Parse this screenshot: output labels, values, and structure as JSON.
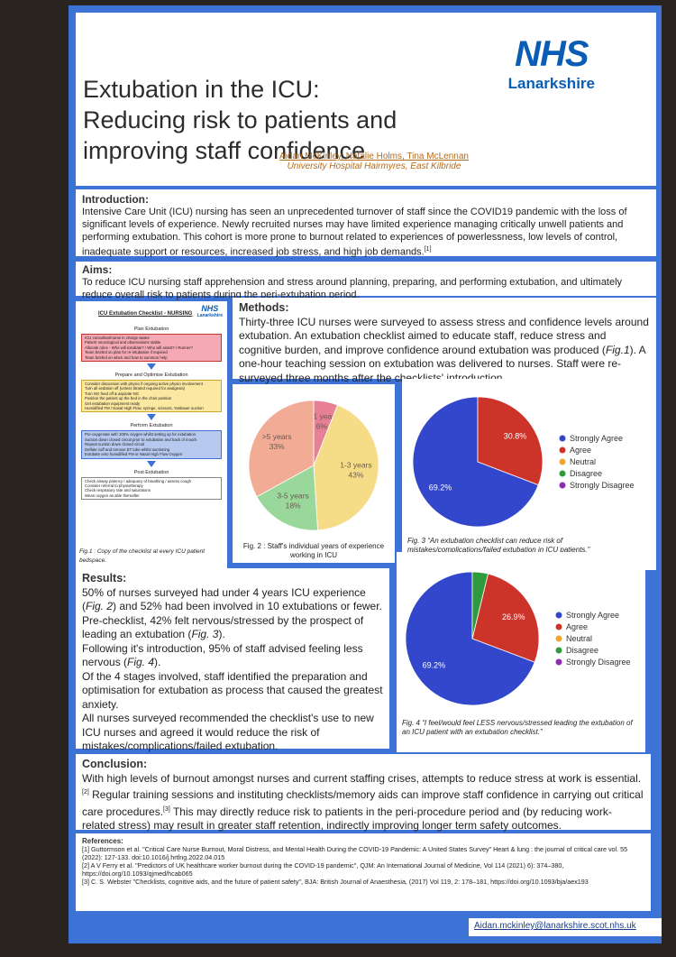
{
  "header": {
    "title": [
      "Extubation in the ICU:",
      "Reducing risk to patients and",
      "improving staff confidence"
    ],
    "logo": "NHS",
    "logo_sub": "Lanarkshire",
    "authors": "Aidan McKinley, Natalie Holms, Tina McLennan",
    "affiliation": "University Hospital Hairmyres, East Kilbride"
  },
  "introduction": {
    "heading": "Introduction:",
    "text": "Intensive Care Unit (ICU) nursing has seen an unprecedented turnover of staff since the COVID19 pandemic with the loss of significant levels of experience. Newly recruited nurses may have limited experience managing critically unwell patients and performing extubation. This cohort is more prone to burnout related to experiences of powerlessness, low levels of control, inadequate support or resources, increased job stress, and high job demands.",
    "ref": "[1]"
  },
  "aims": {
    "heading": "Aims:",
    "text": "To reduce ICU nursing staff apprehension and stress around planning, preparing, and performing extubation, and ultimately reduce overall risk to patients during the peri-extubation period."
  },
  "methods": {
    "heading": "Methods:",
    "text": [
      "Thirty-three ICU nurses were surveyed to assess stress and confidence levels around extubation. An extubation checklist aimed to educate staff, reduce stress and cognitive burden, and improve confidence around extubation was produced (",
      "Fig.1",
      "). A one-hour teaching session on extubation was delivered to nurses. Staff were re-surveyed three months after the checklists' introduction."
    ]
  },
  "checklist": {
    "title": "ICU Extubation Checklist - NURSING",
    "logo": "NHS",
    "logo_sub": "Lanarkshire",
    "caption": "Fig.1 : Copy of the checklist at every ICU patient bedspace.",
    "sections": [
      {
        "heading": "Plan Extubation",
        "items": [
          "ICU consultant/nurse in charge aware",
          "Patient neurological and observations stable",
          "Allocate roles - Who will extubate? / Who will assist? / Runner?",
          "Team briefed on plan for re-intubation if required",
          "Team briefed on when and how to summon help"
        ]
      },
      {
        "heading": "Prepare and Optimise Extubation",
        "items": [
          "Consider discussion with physio if ongoing active physio involvement",
          "Turn all sedation off (unless titrated required for analgesia)",
          "Turn NG feed off & aspirate NG",
          "Position the patient up the bed in the chair position",
          "Get extubation equipment ready",
          "Humidified FM / Nasal High Flow, syringe, scissors, Yankauer suction"
        ]
      },
      {
        "heading": "Perform Extubation",
        "items": [
          "Pre-oxygenate with 100% oxygen whilst setting up for extubation",
          "Suction down closed circuit prior to extubation and back of mouth",
          "Repeat suction down closed circuit",
          "Deflate cuff and remove ET tube whilst suctioning",
          "Extubate onto humidified FM or Nasal High Flow Oxygen"
        ]
      },
      {
        "heading": "Post Extubation",
        "items": [
          "Check airway patency / adequacy of breathing / assess cough",
          "Consider referral to physiotherapy",
          "Check respiratory rate and saturations",
          "Wean oxygen as able thereafter"
        ]
      }
    ]
  },
  "results": {
    "heading": "Results:",
    "paragraphs": [
      [
        "50% of nurses surveyed had under 4 years ICU experience (",
        "Fig. 2",
        ") and 52% had been involved in 10 extubations or fewer."
      ],
      [
        "Pre-checklist, 42% felt nervous/stressed by the prospect of leading an extubation (",
        "Fig. 3",
        ")."
      ],
      [
        "Following it's introduction, 95% of staff advised feeling less nervous (",
        "Fig. 4",
        ")."
      ],
      [
        "Of the 4 stages involved, staff identified the preparation and optimisation for extubation as process that caused the greatest anxiety."
      ],
      [
        "All nurses surveyed recommended the checklist's use to new ICU nurses and agreed it would reduce the risk of mistakes/complications/failed extubation."
      ]
    ]
  },
  "conclusion": {
    "heading": "Conclusion:",
    "parts": [
      "With high levels of burnout amongst nurses and current staffing crises, attempts to reduce stress at work is essential.",
      "[2]",
      " Regular training sessions and instituting checklists/memory aids can improve staff confidence in carrying out critical care procedures.",
      "[3]",
      " This may directly reduce risk to patients in the peri-procedure period and (by reducing work-related stress) may result in greater staff retention, indirectly improving longer term safety outcomes."
    ]
  },
  "references": {
    "heading": "References:",
    "items": [
      "[1] Guttormson et al. \"Critical Care Nurse Burnout, Moral Distress, and Mental Health During the COVID-19 Pandemic: A United States Survey\" Heart & lung : the journal of critical care vol. 55 (2022): 127-133. doi:10.1016/j.hrtlng.2022.04.015",
      "[2] A V Ferry et al. \"Predictors of UK healthcare worker burnout during the COVID-19 pandemic\", QJM: An International Journal of Medicine, Vol 114 (2021) 6): 374–380, https://doi.org/10.1093/qjmed/hcab065",
      "[3] C. S. Webster \"Checklists, cognitive aids, and the future of patient safety\", BJA: British Journal of Anaesthesia, (2017) Vol 119, 2: 178–181, https://doi.org/10.1093/bja/aex193"
    ]
  },
  "email": "Aidan.mckinley@lanarkshire.scot.nhs.uk",
  "chart_data": [
    {
      "type": "pie",
      "caption": "Fig. 2 : Staff's individual years of experience working in ICU",
      "categories": [
        "<1 year",
        "1-3 years",
        "3-5 years",
        ">5 years"
      ],
      "values": [
        6,
        43,
        18,
        33
      ],
      "value_labels": [
        "6%",
        "43%",
        "18%",
        "33%"
      ],
      "colors": [
        "#e77f95",
        "#f6dc86",
        "#9ad79a",
        "#f2ab95"
      ],
      "direction": "clockwise"
    },
    {
      "type": "pie",
      "caption": "Fig. 3 “An extubation checklist can reduce risk of mistakes/complications/failed extubation in ICU patients.”",
      "categories": [
        "Strongly Agree",
        "Agree",
        "Neutral",
        "Disagree",
        "Strongly Disagree"
      ],
      "values": [
        69.2,
        30.8,
        0,
        0,
        0
      ],
      "value_labels": [
        "69.2%",
        "30.8%",
        null,
        null,
        null
      ],
      "colors": [
        "#3347cc",
        "#cc3329",
        "#f1a52f",
        "#2f9b3c",
        "#8e2db3"
      ],
      "direction": "counterclockwise",
      "legend": "right"
    },
    {
      "type": "pie",
      "caption": "Fig. 4 “I feel/would feel LESS nervous/stressed leading the extubation of an ICU patient with an extubation checklist.”",
      "categories": [
        "Strongly Agree",
        "Agree",
        "Neutral",
        "Disagree",
        "Strongly Disagree"
      ],
      "values": [
        69.2,
        26.9,
        0,
        3.8,
        0
      ],
      "value_labels": [
        "69.2%",
        "26.9%",
        null,
        null,
        null
      ],
      "colors": [
        "#3347cc",
        "#cc3329",
        "#f1a52f",
        "#2f9b3c",
        "#8e2db3"
      ],
      "direction": "counterclockwise",
      "legend": "right"
    }
  ]
}
